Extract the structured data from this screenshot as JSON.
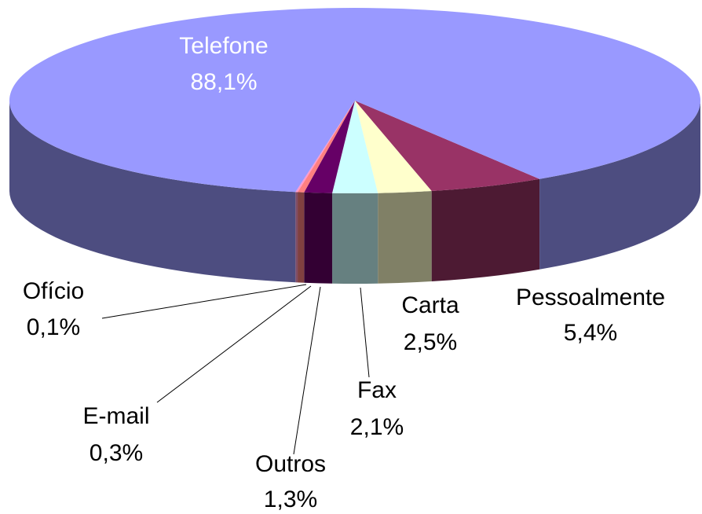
{
  "chart_data": {
    "type": "pie",
    "categories": [
      "Pessoalmente",
      "Carta",
      "Fax",
      "Outros",
      "E-mail",
      "Ofício",
      "Telefone"
    ],
    "values": [
      5.4,
      2.5,
      2.1,
      1.3,
      0.3,
      0.1,
      88.1
    ],
    "value_labels": [
      "5,4%",
      "2,5%",
      "2,1%",
      "1,3%",
      "0,3%",
      "0,1%",
      "88,1%"
    ],
    "colors": [
      "#993366",
      "#ffffcc",
      "#ccffff",
      "#660066",
      "#ff8080",
      "#ff99cc",
      "#9999ff"
    ]
  }
}
